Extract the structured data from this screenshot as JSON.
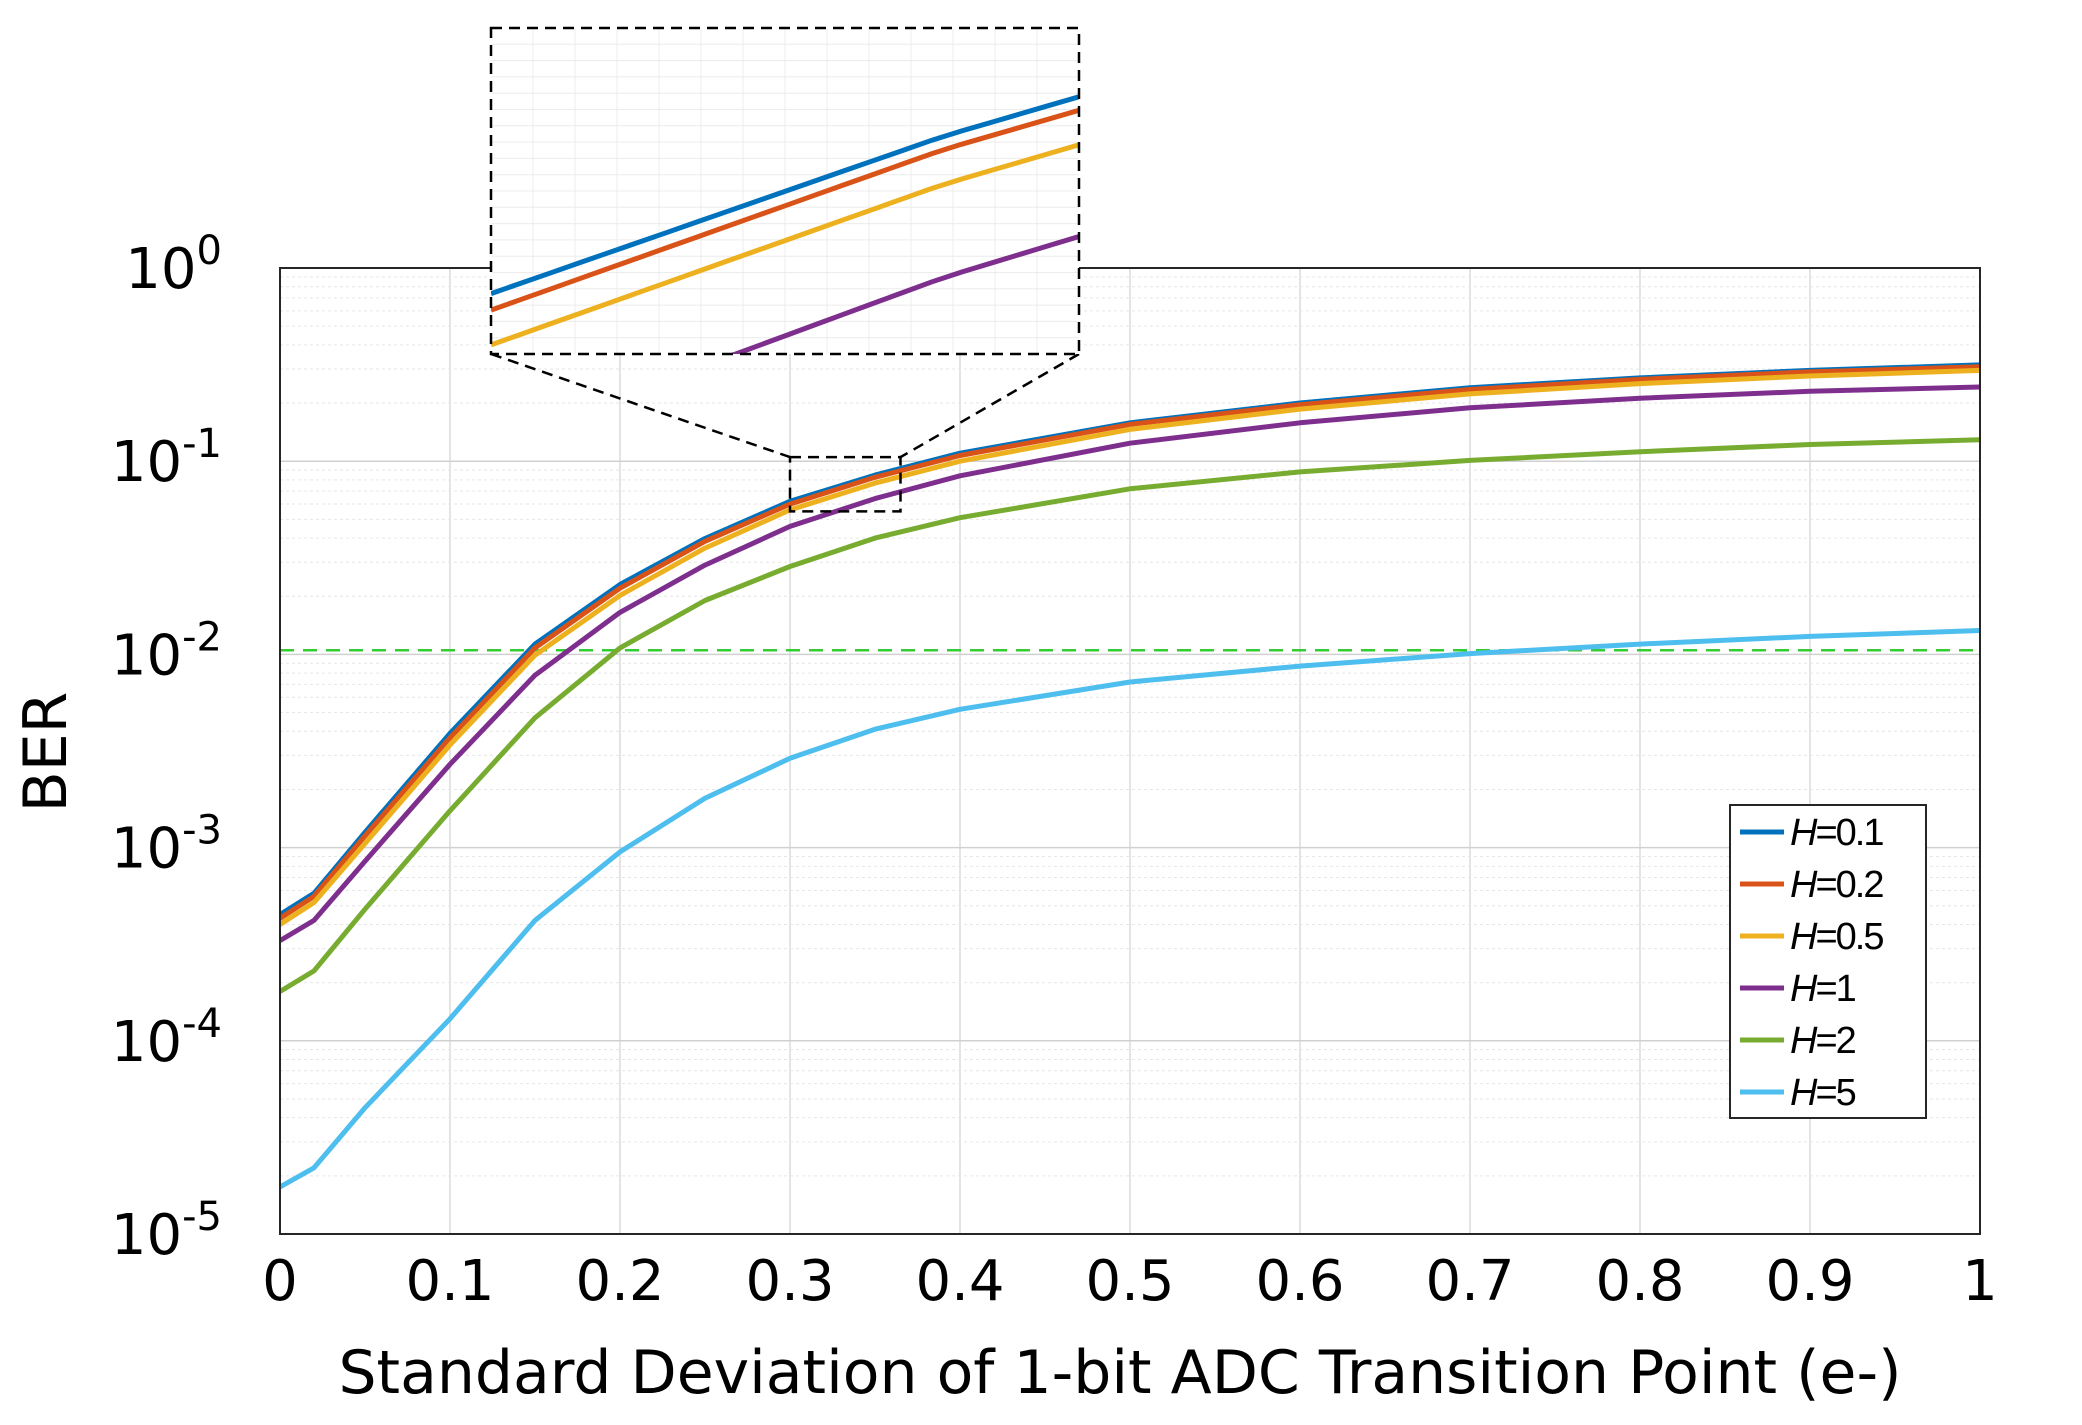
{
  "chart_data": {
    "type": "line",
    "title": "",
    "xlabel": "Standard Deviation of 1-bit ADC Transition Point (e-)",
    "ylabel": "BER",
    "xlim": [
      0,
      1
    ],
    "ylim": [
      1e-05,
      1
    ],
    "yscale": "log",
    "grid": true,
    "x_ticks": [
      "0",
      "0.1",
      "0.2",
      "0.3",
      "0.4",
      "0.5",
      "0.6",
      "0.7",
      "0.8",
      "0.9",
      "1"
    ],
    "y_ticks": [
      {
        "base": "10",
        "exp": "0"
      },
      {
        "base": "10",
        "exp": "-1"
      },
      {
        "base": "10",
        "exp": "-2"
      },
      {
        "base": "10",
        "exp": "-3"
      },
      {
        "base": "10",
        "exp": "-4"
      },
      {
        "base": "10",
        "exp": "-5"
      }
    ],
    "threshold": {
      "y": 0.0105,
      "color": "#33cc33",
      "style": "dashed"
    },
    "x": [
      0.0,
      0.02,
      0.05,
      0.1,
      0.15,
      0.2,
      0.25,
      0.3,
      0.35,
      0.4,
      0.5,
      0.6,
      0.7,
      0.8,
      0.9,
      1.0
    ],
    "series": [
      {
        "name": "H=0.1",
        "var": "H",
        "val": "=0.1",
        "color": "#0072BD",
        "values": [
          0.00045,
          0.00058,
          0.0012,
          0.0039,
          0.0113,
          0.023,
          0.0398,
          0.062,
          0.0847,
          0.11,
          0.158,
          0.2,
          0.24,
          0.27,
          0.295,
          0.315
        ]
      },
      {
        "name": "H=0.2",
        "var": "H",
        "val": "=0.2",
        "color": "#D95319",
        "values": [
          0.00043,
          0.00056,
          0.00115,
          0.0037,
          0.0108,
          0.022,
          0.0385,
          0.06,
          0.0825,
          0.107,
          0.155,
          0.196,
          0.235,
          0.265,
          0.29,
          0.308
        ]
      },
      {
        "name": "H=0.5",
        "var": "H",
        "val": "=0.5",
        "color": "#EDB120",
        "values": [
          0.0004,
          0.00052,
          0.00105,
          0.0034,
          0.0099,
          0.0202,
          0.0355,
          0.056,
          0.077,
          0.1,
          0.146,
          0.186,
          0.223,
          0.252,
          0.276,
          0.295
        ]
      },
      {
        "name": "H=1",
        "var": "H",
        "val": "=1",
        "color": "#7E2F8E",
        "values": [
          0.00033,
          0.00042,
          0.00085,
          0.0027,
          0.0078,
          0.0165,
          0.029,
          0.046,
          0.064,
          0.084,
          0.124,
          0.158,
          0.189,
          0.212,
          0.23,
          0.242
        ]
      },
      {
        "name": "H=2",
        "var": "H",
        "val": "=2",
        "color": "#77AC30",
        "values": [
          0.00018,
          0.00023,
          0.00048,
          0.00155,
          0.0047,
          0.0108,
          0.019,
          0.0285,
          0.04,
          0.051,
          0.072,
          0.088,
          0.101,
          0.112,
          0.122,
          0.129
        ]
      },
      {
        "name": "H=5",
        "var": "H",
        "val": "=5",
        "color": "#4DBEEE",
        "values": [
          1.75e-05,
          2.2e-05,
          4.5e-05,
          0.00013,
          0.00042,
          0.00095,
          0.0018,
          0.0029,
          0.0041,
          0.0052,
          0.0072,
          0.0087,
          0.0101,
          0.0113,
          0.0124,
          0.0133
        ]
      }
    ],
    "legend": "bottom-right",
    "inset": {
      "description": "zoom",
      "xlim": [
        0.3,
        0.365
      ],
      "ylim": [
        0.055,
        0.105
      ]
    }
  }
}
